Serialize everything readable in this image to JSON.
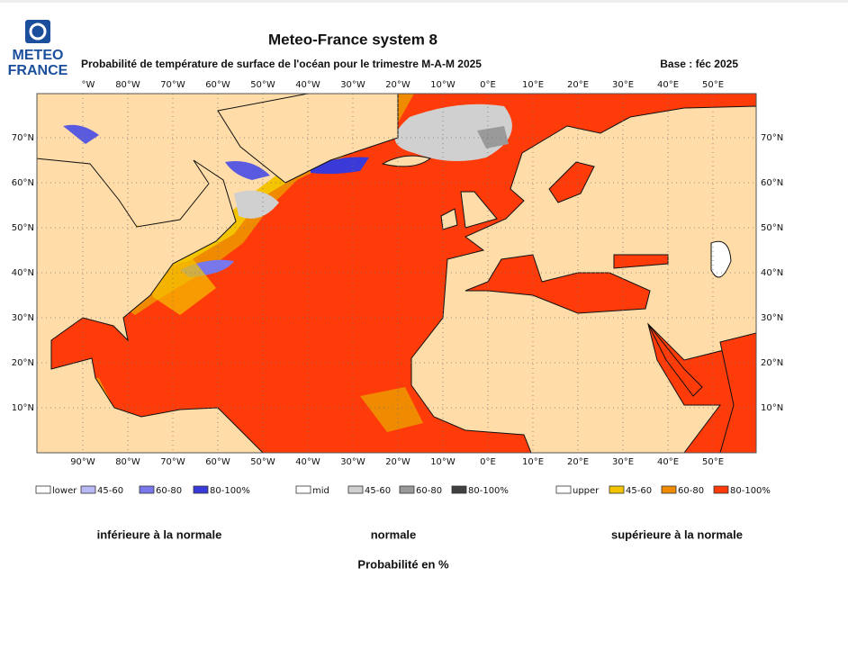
{
  "header": {
    "logo": [
      "METEO",
      "FRANCE"
    ],
    "title": "Meteo-France system 8",
    "subtitle": "Probabilité de température de surface de l'océan pour le trimestre M-A-M 2025",
    "base": "Base : féc 2025"
  },
  "map": {
    "lon_labels_top": [
      "°W",
      "80°W",
      "70°W",
      "60°W",
      "50°W",
      "40°W",
      "30°W",
      "20°W",
      "10°W",
      "0°E",
      "10°E",
      "20°E",
      "30°E",
      "40°E",
      "50°E"
    ],
    "lon_labels_bottom": [
      "90°W",
      "80°W",
      "70°W",
      "60°W",
      "50°W",
      "40°W",
      "30°W",
      "20°W",
      "10°W",
      "0°E",
      "10°E",
      "20°E",
      "30°E",
      "40°E",
      "50°E"
    ],
    "lat_labels": [
      "70°N",
      "60°N",
      "50°N",
      "40°N",
      "30°N",
      "20°N",
      "10°N"
    ]
  },
  "legend": [
    {
      "entries": [
        {
          "label": "lower",
          "color": "#ffffff"
        },
        {
          "label": "45-60",
          "color": "#b8b8f4"
        },
        {
          "label": "60-80",
          "color": "#7878ec"
        },
        {
          "label": "80-100%",
          "color": "#3a3ad8"
        }
      ]
    },
    {
      "entries": [
        {
          "label": "mid",
          "color": "#ffffff"
        },
        {
          "label": "45-60",
          "color": "#d0d0d0"
        },
        {
          "label": "60-80",
          "color": "#9a9a9a"
        },
        {
          "label": "80-100%",
          "color": "#404040"
        }
      ]
    },
    {
      "entries": [
        {
          "label": "upper",
          "color": "#ffffff"
        },
        {
          "label": "45-60",
          "color": "#f5c400"
        },
        {
          "label": "60-80",
          "color": "#f08a00"
        },
        {
          "label": "80-100%",
          "color": "#ff3b0a"
        }
      ]
    }
  ],
  "captions": [
    "inférieure à la normale",
    "normale",
    "supérieure à la normale"
  ],
  "footer": "Probabilité en %"
}
